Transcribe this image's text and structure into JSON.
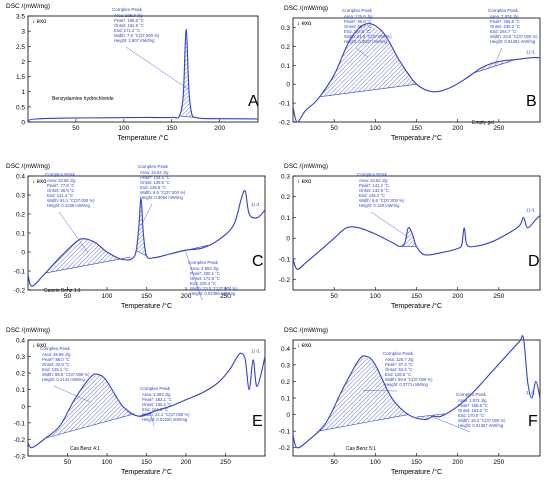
{
  "chart_data": [
    {
      "panel": "A",
      "type": "line",
      "ylabel": "DSC /(mW/mg)",
      "exo_label": "↓ exo",
      "xlabel": "Temperature /°C",
      "xlim": [
        0,
        240
      ],
      "ylim": [
        0,
        3.5
      ],
      "yticks": [
        "0",
        "0.5",
        "1",
        "1.5",
        "2",
        "2.5",
        "3",
        "3.5"
      ],
      "xticks": [
        "50",
        "100",
        "150",
        "200"
      ],
      "sample_label": "Benzydamine hydrochloride",
      "series": [
        {
          "x": [
            0,
            8,
            40,
            80,
            120,
            150,
            158,
            162,
            165,
            168,
            171,
            175,
            182,
            200,
            240
          ],
          "values": [
            0.05,
            0.1,
            0.13,
            0.14,
            0.15,
            0.15,
            0.2,
            0.9,
            3.05,
            1.0,
            0.25,
            0.15,
            0.12,
            0.11,
            0.1
          ]
        }
      ],
      "peaks": [
        {
          "label": "Complex Peak",
          "lines": [
            "Area: 105.3 J/g",
            "Peak*: 166.5 °C",
            "Onset: 162.9 °C",
            "End: 171.2 °C",
            "Width: 7.9 °C(37.000 %)",
            "Height: 2.907 mW/mg"
          ],
          "x_start": 158,
          "x_end": 175
        }
      ]
    },
    {
      "panel": "B",
      "type": "line",
      "ylabel": "DSC /(mW/mg)",
      "exo_label": "↓ exo",
      "xlabel": "Temperature /°C",
      "xlim": [
        0,
        300
      ],
      "ylim": [
        -0.2,
        0.35
      ],
      "yticks": [
        "-0.2",
        "-0.1",
        "0",
        "0.1",
        "0.2",
        "0.3"
      ],
      "xticks": [
        "50",
        "100",
        "150",
        "200",
        "250"
      ],
      "sample_label": "Empty gel",
      "series": [
        {
          "x": [
            0,
            5,
            15,
            30,
            50,
            70,
            90,
            110,
            130,
            150,
            170,
            190,
            210,
            230,
            250,
            270,
            290,
            300
          ],
          "values": [
            -0.12,
            -0.2,
            -0.14,
            -0.08,
            0.05,
            0.24,
            0.32,
            0.27,
            0.12,
            0.0,
            -0.04,
            -0.02,
            0.03,
            0.09,
            0.12,
            0.13,
            0.14,
            0.14
          ]
        }
      ],
      "peaks": [
        {
          "label": "Complex Peak",
          "lines": [
            "Area: 125.6 J/g",
            "Peak*: 86.8 °C",
            "Onset: 46.7 °C",
            "End: 124.6 °C",
            "Width: 61.9 °C(37.000 %)",
            "Height: 0.3507 mW/mg"
          ],
          "x_start": 32,
          "x_end": 150
        },
        {
          "label": "Complex Peak",
          "lines": [
            "Area: 7.974 J/g",
            "Peak*: 255.5 °C",
            "Onset: 230.2 °C",
            "End: 264.7 °C",
            "Width: 23.6 °C(37.000 %)",
            "Height: 0.04402 mW/mg"
          ],
          "x_start": 220,
          "x_end": 270
        }
      ],
      "end_label": "1) /1"
    },
    {
      "panel": "C",
      "type": "line",
      "ylabel": "DSC /(mW/mg)",
      "exo_label": "↓ exo",
      "xlabel": "Temperature /°C",
      "xlim": [
        0,
        300
      ],
      "ylim": [
        -0.2,
        0.4
      ],
      "yticks": [
        "-0.2",
        "-0.1",
        "0",
        "0.1",
        "0.2",
        "0.3",
        "0.4"
      ],
      "xticks": [
        "50",
        "100",
        "150",
        "200",
        "250"
      ],
      "sample_label": "Casein Benz 1:1",
      "series": [
        {
          "x": [
            0,
            5,
            20,
            40,
            60,
            70,
            85,
            100,
            120,
            135,
            140,
            143,
            146,
            150,
            160,
            180,
            200,
            220,
            240,
            260,
            270,
            275,
            280,
            290,
            300
          ],
          "values": [
            -0.12,
            -0.18,
            -0.12,
            -0.03,
            0.05,
            0.07,
            0.05,
            0.0,
            -0.04,
            -0.02,
            0.12,
            0.28,
            0.1,
            -0.02,
            -0.03,
            -0.01,
            0.01,
            0.02,
            0.06,
            0.14,
            0.28,
            0.32,
            0.2,
            0.18,
            0.22
          ]
        }
      ],
      "peaks": [
        {
          "label": "Complex Peak",
          "lines": [
            "Area: 33.66 J/g",
            "Peak*: 77.8 °C",
            "Onset: 35.9 °C",
            "End: 121.4 °C",
            "Width: 54.1 °C(37.000 %)",
            "Height: 0.1036 mW/mg"
          ],
          "x_start": 22,
          "x_end": 130
        },
        {
          "label": "Complex Peak",
          "lines": [
            "Area: 15.84 J/g",
            "Peak*: 144.5 °C",
            "Onset: 139.9 °C",
            "End: 145.5 °C",
            "Width: 6.5 °C(37.000 %)",
            "Height: 0.3094 mW/mg"
          ],
          "x_start": 136,
          "x_end": 150
        },
        {
          "label": "Complex Peak",
          "lines": [
            "Area: 2.863 J/g",
            "Peak*: 200.1 °C",
            "Onset: 172.8 °C",
            "End: 225.4 °C",
            "Width: 23.5 °C(37.000 %)",
            "Height: 0.02399 mW/mg"
          ],
          "x_start": 170,
          "x_end": 228
        }
      ],
      "end_label": "1) /1"
    },
    {
      "panel": "D",
      "type": "line",
      "ylabel": "DSC /(mW/mg)",
      "exo_label": "↓ exo",
      "xlabel": "Temperature /°C",
      "xlim": [
        0,
        300
      ],
      "ylim": [
        -0.25,
        0.3
      ],
      "yticks": [
        "-0.2",
        "-0.1",
        "0",
        "0.1",
        "0.2",
        "0.3"
      ],
      "xticks": [
        "50",
        "100",
        "150",
        "200",
        "250"
      ],
      "sample_label": "",
      "series": [
        {
          "x": [
            0,
            5,
            15,
            30,
            50,
            65,
            80,
            100,
            120,
            130,
            136,
            140,
            145,
            150,
            160,
            180,
            200,
            205,
            208,
            211,
            220,
            240,
            260,
            275,
            280,
            285,
            295,
            300
          ],
          "values": [
            -0.1,
            -0.15,
            -0.12,
            -0.07,
            0.0,
            0.05,
            0.05,
            0.02,
            -0.02,
            -0.04,
            -0.02,
            0.05,
            0.02,
            -0.04,
            -0.08,
            -0.07,
            -0.05,
            -0.03,
            0.05,
            -0.03,
            -0.04,
            -0.02,
            0.02,
            0.06,
            0.1,
            0.05,
            0.09,
            0.11
          ]
        }
      ],
      "peaks": [
        {
          "label": "Complex Peak",
          "lines": [
            "Area: 10.62 J/g",
            "Peak*: 141.2 °C",
            "Onset: 132.9 °C",
            "End: 145.2 °C",
            "Width: 6.6 °C(37.000 %)",
            "Height: 0.129 mW/mg"
          ],
          "x_start": 130,
          "x_end": 150
        }
      ],
      "end_label": "1) /1"
    },
    {
      "panel": "E",
      "type": "line",
      "ylabel": "DSC /(mW/mg)",
      "exo_label": "↓ exo",
      "xlabel": "Temperature /°C",
      "xlim": [
        0,
        300
      ],
      "ylim": [
        -0.3,
        0.4
      ],
      "yticks": [
        "-0.3",
        "-0.2",
        "-0.1",
        "0",
        "0.1",
        "0.2",
        "0.3",
        "0.4"
      ],
      "xticks": [
        "50",
        "100",
        "150",
        "200",
        "250"
      ],
      "sample_label": "Cas Benz 4:1",
      "series": [
        {
          "x": [
            0,
            5,
            20,
            40,
            60,
            80,
            90,
            100,
            120,
            140,
            160,
            180,
            200,
            220,
            240,
            255,
            265,
            270,
            275,
            280,
            285,
            290,
            300
          ],
          "values": [
            -0.22,
            -0.25,
            -0.2,
            -0.12,
            0.05,
            0.18,
            0.19,
            0.15,
            0.0,
            -0.06,
            -0.03,
            0.0,
            0.04,
            0.08,
            0.14,
            0.22,
            0.3,
            0.32,
            0.28,
            0.1,
            0.28,
            0.12,
            0.3
          ]
        }
      ],
      "peaks": [
        {
          "label": "Complex Peak",
          "lines": [
            "Area: 36.96 J/g",
            "Peak*: 86.0 °C",
            "Onset: 32.9 °C",
            "End: 125.1 °C",
            "Width: 68.8 °C(37.000 %)",
            "Height: 0.2142 mW/mg"
          ],
          "x_start": 22,
          "x_end": 135
        },
        {
          "label": "Complex Peak",
          "lines": [
            "Area: 1.363 J/g",
            "Peak*: 162.1 °C",
            "Onset: 155.1 °C",
            "End: 164.6 °C",
            "Width: 22.1 °C(37.000 %)",
            "Height: 0.01020 mW/mg"
          ],
          "x_start": 140,
          "x_end": 170
        }
      ],
      "end_label": "1) /1"
    },
    {
      "panel": "F",
      "type": "line",
      "ylabel": "DSC /(mW/mg)",
      "exo_label": "↓ exo",
      "xlabel": "Temperature /°C",
      "xlim": [
        0,
        300
      ],
      "ylim": [
        -0.25,
        0.45
      ],
      "yticks": [
        "-0.2",
        "-0.1",
        "0",
        "0.1",
        "0.2",
        "0.3",
        "0.4"
      ],
      "xticks": [
        "50",
        "100",
        "150",
        "200",
        "250"
      ],
      "sample_label": "Cas Benz 5:1",
      "series": [
        {
          "x": [
            0,
            5,
            20,
            40,
            60,
            80,
            90,
            100,
            120,
            140,
            160,
            170,
            180,
            200,
            220,
            240,
            260,
            275,
            280,
            285,
            290,
            295,
            300
          ],
          "values": [
            -0.12,
            -0.2,
            -0.15,
            -0.05,
            0.15,
            0.33,
            0.35,
            0.3,
            0.1,
            0.0,
            -0.03,
            -0.01,
            -0.01,
            0.05,
            0.14,
            0.25,
            0.36,
            0.44,
            0.46,
            0.2,
            0.1,
            0.2,
            0.1
          ]
        }
      ],
      "peaks": [
        {
          "label": "Complex Peak",
          "lines": [
            "Area: 126.7 J/g",
            "Peak*: 87.3 °C",
            "Onset: 52.6 °C",
            "End: 126.6 °C",
            "Width: 59.9 °C(37.000 %)",
            "Height: 0.3771 mW/mg"
          ],
          "x_start": 30,
          "x_end": 140
        },
        {
          "label": "Complex Peak",
          "lines": [
            "Area: 1.971 J/g",
            "Peak*: 166.5 °C",
            "Onset: 163.0 °C",
            "End: 170.0 °C",
            "Width: 16.3 °C(37.000 %)",
            "Height: 0.01367 mW/mg"
          ],
          "x_start": 150,
          "x_end": 185
        }
      ],
      "end_label": "1) /1"
    }
  ]
}
